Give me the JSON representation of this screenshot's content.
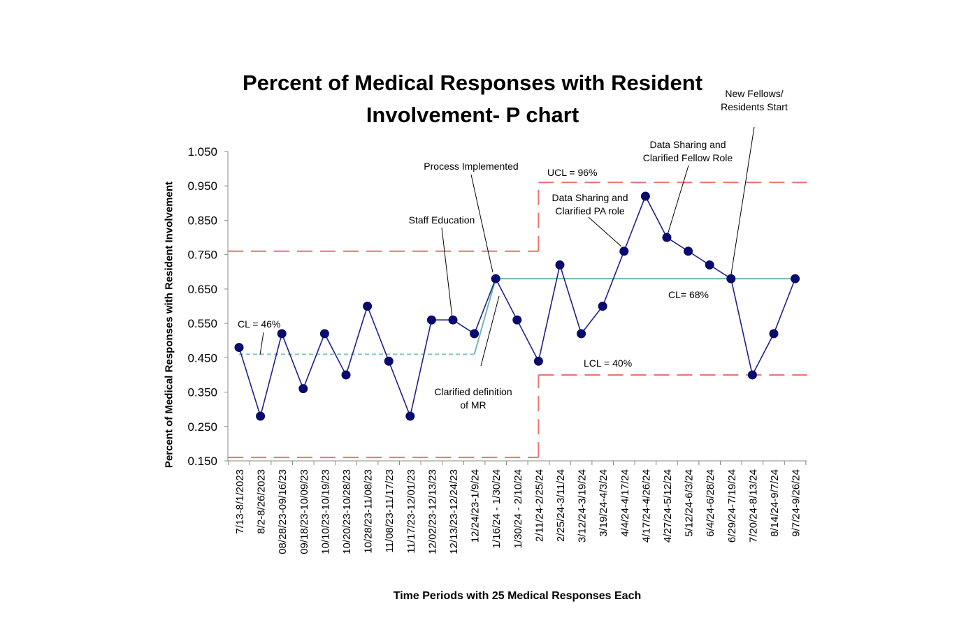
{
  "chart_data": {
    "type": "line",
    "title": [
      "Percent of Medical Responses with Resident",
      "Involvement- P chart"
    ],
    "xlabel": "Time Periods with 25 Medical Responses Each",
    "ylabel": "Percent of Medical Responses with Resident Involvement",
    "ylim": [
      0.15,
      1.05
    ],
    "yticks": [
      "0.150",
      "0.250",
      "0.350",
      "0.450",
      "0.550",
      "0.650",
      "0.750",
      "0.850",
      "0.950",
      "1.050"
    ],
    "categories": [
      "7/13-8/1/2023",
      "8/2-8/26/2023",
      "08/28/23-09/16/23",
      "09/18/23-10/09/23",
      "10/10/23-10/19/23",
      "10/20/23-10/28/23",
      "10/28/23-11/08/23",
      "11/08/23-11/17/23",
      "11/17/23-12/01/23",
      "12/02/23-12/13/23",
      "12/13/23-12/24/23",
      "12/24/23-1/9/24",
      "1/16/24 - 1/30/24",
      "1/30/24 - 2/10/24",
      "2/11/24-2/25/24",
      "2/25/24-3/11/24",
      "3/12/24-3/19/24",
      "3/19/24-4/3/24",
      "4/4/24-4/17/24",
      "4/17/24-4/26/24",
      "4/27/24-5/12/24",
      "5/12/24-6/3/24",
      "6/4/24-6/28/24",
      "6/29/24-7/19/24",
      "7/20/24-8/13/24",
      "8/14/24-9/7/24",
      "9/7/24-9/26/24"
    ],
    "series": [
      {
        "values": [
          0.48,
          0.28,
          0.52,
          0.36,
          0.52,
          0.4,
          0.6,
          0.44,
          0.28,
          0.56,
          0.56,
          0.52,
          0.68,
          0.56,
          0.44,
          0.72,
          0.52,
          0.6,
          0.76,
          0.92,
          0.8,
          0.76,
          0.72,
          0.68,
          0.4,
          0.52,
          0.68
        ],
        "color": "#1f1f8f"
      }
    ],
    "control_limits": {
      "phase1": {
        "cl": 0.46,
        "ucl": 0.76,
        "lcl": 0.16,
        "from_index": 0,
        "to_index": 14
      },
      "phase2": {
        "cl": 0.68,
        "ucl": 0.96,
        "lcl": 0.4,
        "from_index": 14,
        "to_index": 26
      }
    },
    "limit_color": "#e8756e",
    "cl1_color": "#7ec8c0",
    "cl2_color": "#6fb8b3",
    "annotations": {
      "cl1": "CL = 46%",
      "cl2": "CL= 68%",
      "ucl": "UCL = 96%",
      "lcl": "LCL = 40%",
      "staff_education": "Staff Education",
      "process_implemented": "Process Implemented",
      "clarified_definition": [
        "Clarified definition",
        "of MR"
      ],
      "data_sharing_pa": [
        "Data Sharing and",
        "Clarified PA role"
      ],
      "data_sharing_fellow": [
        "Data Sharing and",
        "Clarified Fellow Role"
      ],
      "new_fellows": [
        "New Fellows/",
        "Residents Start"
      ]
    }
  }
}
